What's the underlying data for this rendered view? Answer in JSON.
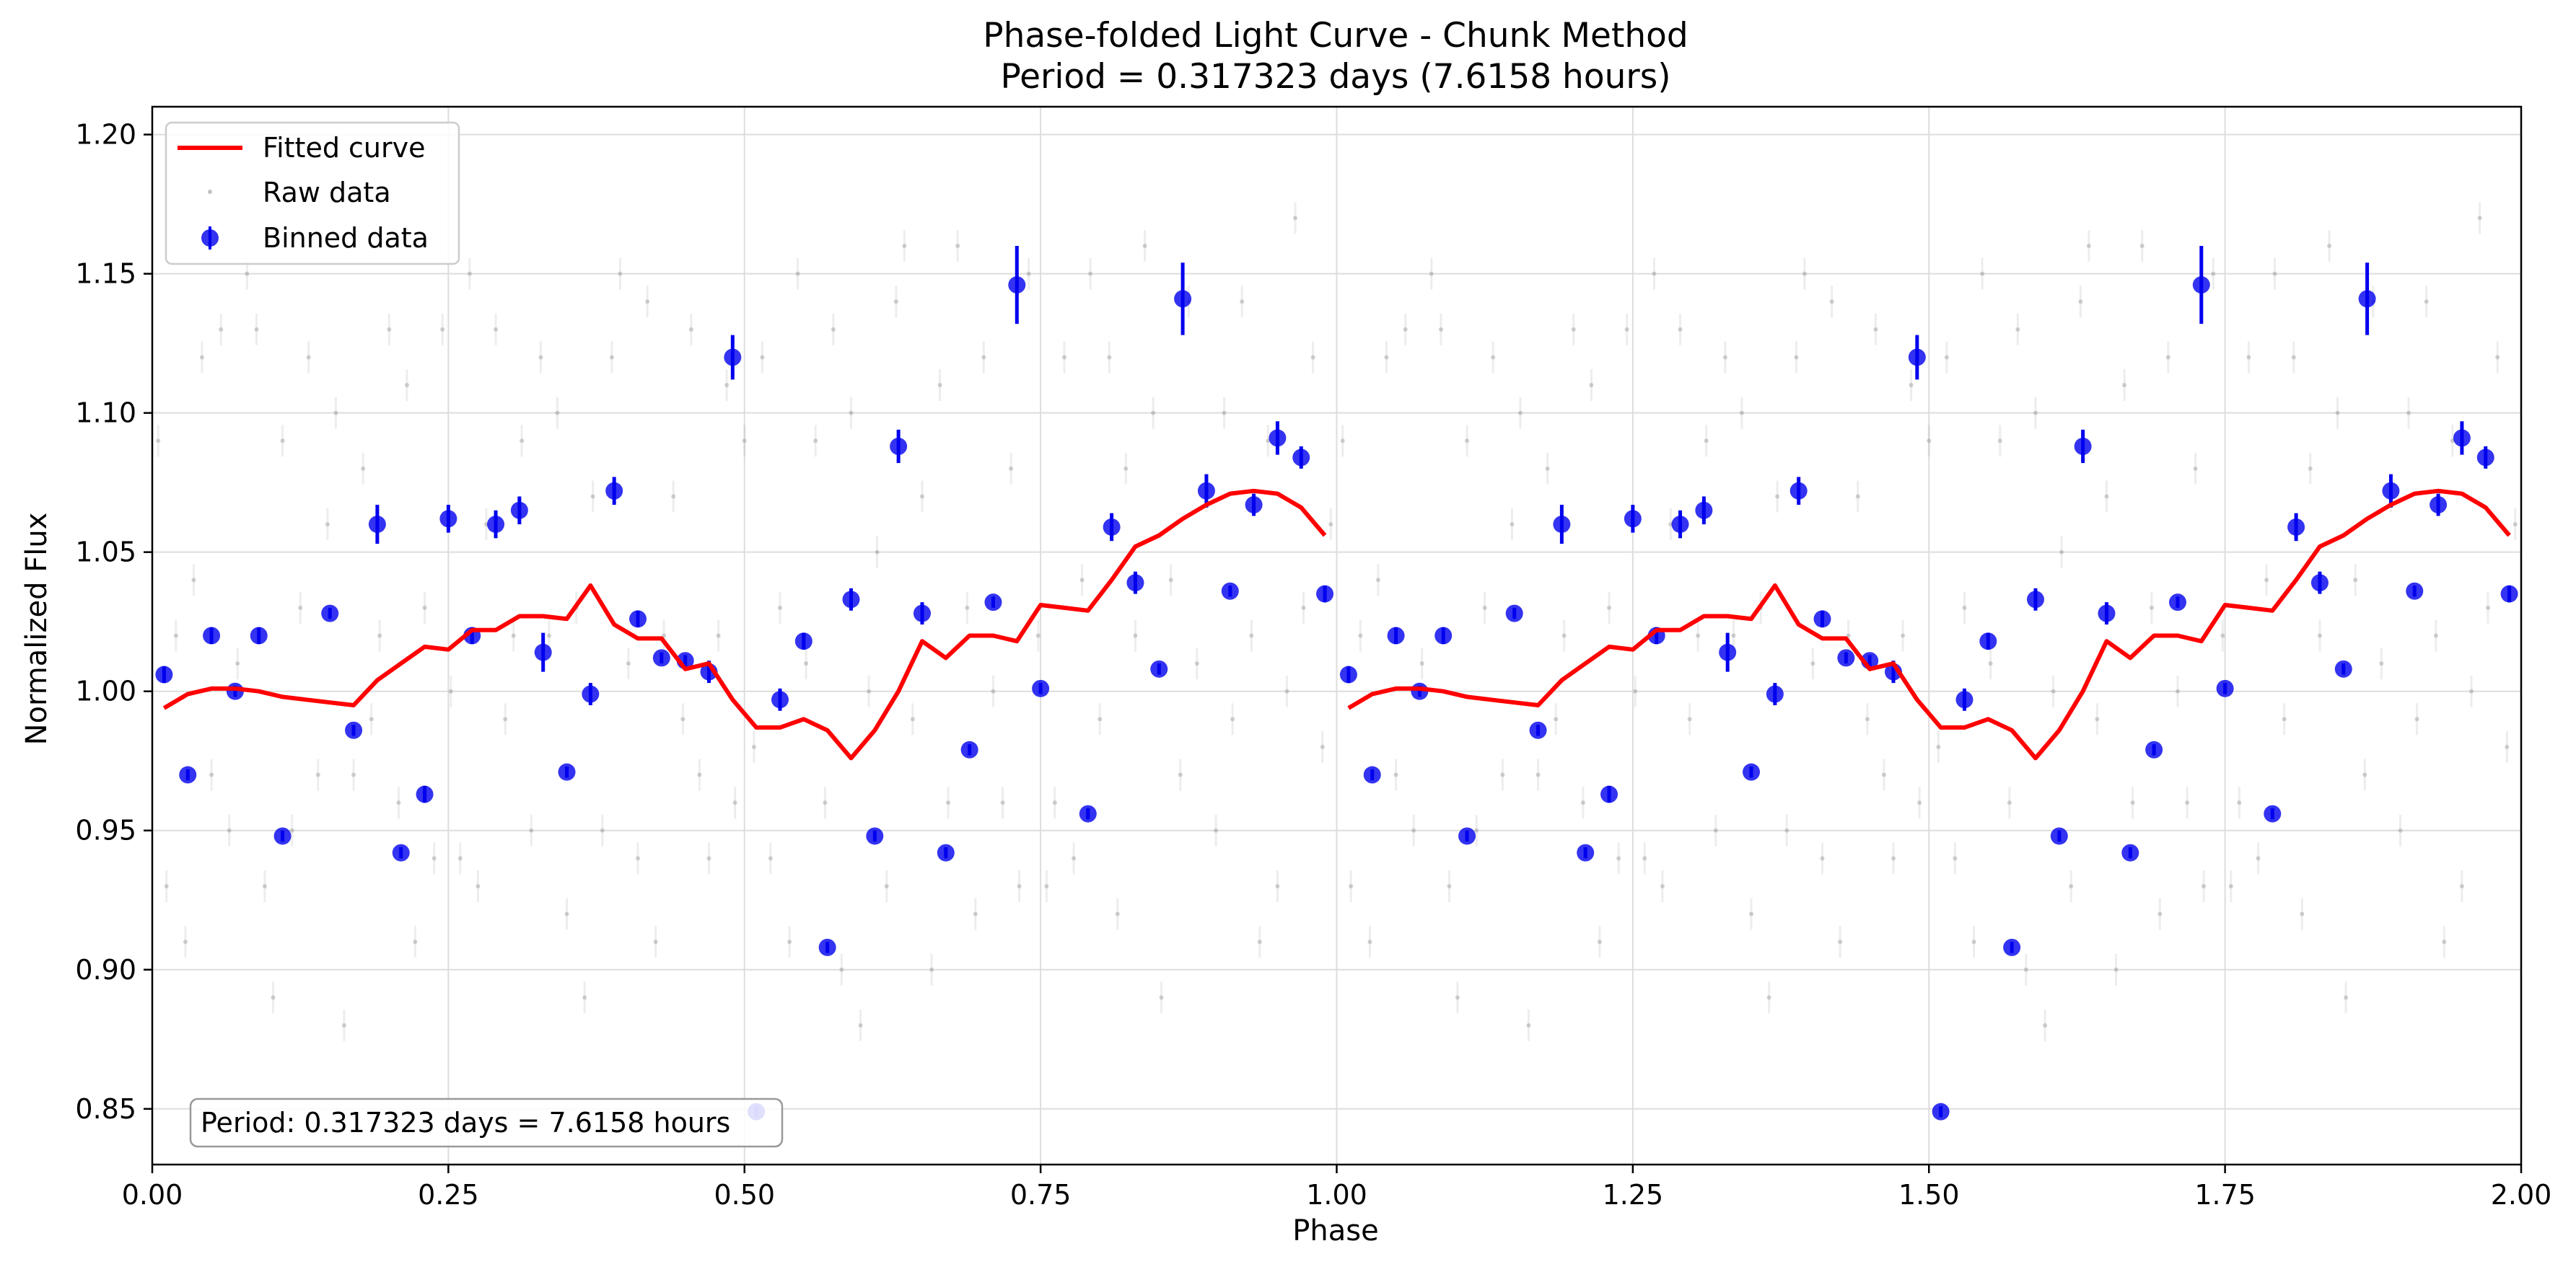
{
  "chart_data": {
    "type": "scatter",
    "title": "Phase-folded Light Curve - Chunk Method",
    "subtitle": "Period = 0.317323 days (7.6158 hours)",
    "xlabel": "Phase",
    "ylabel": "Normalized Flux",
    "xlim": [
      0.0,
      2.0
    ],
    "ylim": [
      0.83,
      1.21
    ],
    "x_ticks": [
      "0.00",
      "0.25",
      "0.50",
      "0.75",
      "1.00",
      "1.25",
      "1.50",
      "1.75",
      "2.00"
    ],
    "y_ticks": [
      "0.85",
      "0.90",
      "0.95",
      "1.00",
      "1.05",
      "1.10",
      "1.15",
      "1.20"
    ],
    "grid": true,
    "legend_position": "top-left",
    "annotation": "Period: 0.317323 days = 7.6158 hours",
    "colors": {
      "fitted": "#ff0000",
      "binned": "#0000ee",
      "raw": "#999999"
    },
    "series": [
      {
        "name": "Fitted curve",
        "style": "line",
        "x": [
          0.01,
          0.03,
          0.05,
          0.07,
          0.09,
          0.11,
          0.13,
          0.15,
          0.17,
          0.19,
          0.21,
          0.23,
          0.25,
          0.27,
          0.29,
          0.31,
          0.33,
          0.35,
          0.37,
          0.39,
          0.41,
          0.43,
          0.45,
          0.47,
          0.49,
          0.51,
          0.53,
          0.55,
          0.57,
          0.59,
          0.61,
          0.63,
          0.65,
          0.67,
          0.69,
          0.71,
          0.73,
          0.75,
          0.77,
          0.79,
          0.81,
          0.83,
          0.85,
          0.87,
          0.89,
          0.91,
          0.93,
          0.95,
          0.97,
          0.99
        ],
        "y": [
          0.994,
          0.999,
          1.001,
          1.001,
          1.0,
          0.998,
          0.997,
          0.996,
          0.995,
          1.004,
          1.01,
          1.016,
          1.015,
          1.022,
          1.022,
          1.027,
          1.027,
          1.026,
          1.038,
          1.024,
          1.019,
          1.019,
          1.008,
          1.01,
          0.997,
          0.987,
          0.987,
          0.99,
          0.986,
          0.976,
          0.986,
          1.0,
          1.018,
          1.012,
          1.02,
          1.02,
          1.018,
          1.031,
          1.03,
          1.029,
          1.04,
          1.052,
          1.056,
          1.062,
          1.067,
          1.071,
          1.072,
          1.071,
          1.066,
          1.056
        ]
      },
      {
        "name": "Raw data",
        "style": "points",
        "x": [
          0.005,
          0.012,
          0.02,
          0.028,
          0.035,
          0.042,
          0.05,
          0.058,
          0.065,
          0.072,
          0.08,
          0.088,
          0.095,
          0.102,
          0.11,
          0.118,
          0.125,
          0.132,
          0.14,
          0.148,
          0.155,
          0.162,
          0.17,
          0.178,
          0.185,
          0.192,
          0.2,
          0.208,
          0.215,
          0.222,
          0.23,
          0.238,
          0.245,
          0.252,
          0.26,
          0.268,
          0.275,
          0.282,
          0.29,
          0.298,
          0.305,
          0.312,
          0.32,
          0.328,
          0.335,
          0.342,
          0.35,
          0.358,
          0.365,
          0.372,
          0.38,
          0.388,
          0.395,
          0.402,
          0.41,
          0.418,
          0.425,
          0.432,
          0.44,
          0.448,
          0.455,
          0.462,
          0.47,
          0.478,
          0.485,
          0.492,
          0.5,
          0.508,
          0.515,
          0.522,
          0.53,
          0.538,
          0.545,
          0.552,
          0.56,
          0.568,
          0.575,
          0.582,
          0.59,
          0.598,
          0.605,
          0.612,
          0.62,
          0.628,
          0.635,
          0.642,
          0.65,
          0.658,
          0.665,
          0.672,
          0.68,
          0.688,
          0.695,
          0.702,
          0.71,
          0.718,
          0.725,
          0.732,
          0.74,
          0.748,
          0.755,
          0.762,
          0.77,
          0.778,
          0.785,
          0.792,
          0.8,
          0.808,
          0.815,
          0.822,
          0.83,
          0.838,
          0.845,
          0.852,
          0.86,
          0.868,
          0.875,
          0.882,
          0.89,
          0.898,
          0.905,
          0.912,
          0.92,
          0.928,
          0.935,
          0.942,
          0.95,
          0.958,
          0.965,
          0.972,
          0.98,
          0.988,
          0.995
        ],
        "y": [
          1.09,
          0.93,
          1.02,
          0.91,
          1.04,
          1.12,
          0.97,
          1.13,
          0.95,
          1.01,
          1.15,
          1.13,
          0.93,
          0.89,
          1.09,
          0.95,
          1.03,
          1.12,
          0.97,
          1.06,
          1.1,
          0.88,
          0.97,
          1.08,
          0.99,
          1.02,
          1.13,
          0.96,
          1.11,
          0.91,
          1.03,
          0.94,
          1.13,
          1.0,
          0.94,
          1.15,
          0.93,
          1.06,
          1.13,
          0.99,
          1.02,
          1.09,
          0.95,
          1.12,
          1.02,
          1.1,
          0.92,
          1.03,
          0.89,
          1.07,
          0.95,
          1.12,
          1.15,
          1.01,
          0.94,
          1.14,
          0.91,
          1.02,
          1.07,
          0.99,
          1.13,
          0.97,
          0.94,
          1.02,
          1.11,
          0.96,
          1.09,
          0.98,
          1.12,
          0.94,
          1.03,
          0.91,
          1.15,
          1.01,
          1.09,
          0.96,
          1.13,
          0.9,
          1.1,
          0.88,
          1.0,
          1.05,
          0.93,
          1.14,
          1.16,
          0.99,
          1.07,
          0.9,
          1.11,
          0.96,
          1.16,
          1.03,
          0.92,
          1.12,
          1.0,
          0.96,
          1.08,
          0.93,
          1.15,
          1.02,
          0.93,
          0.96,
          1.12,
          0.94,
          1.04,
          1.15,
          0.99,
          1.12,
          0.92,
          1.08,
          1.02,
          1.16,
          1.1,
          0.89,
          1.04,
          0.97,
          1.14,
          1.01,
          1.07,
          0.95,
          1.1,
          0.99,
          1.14,
          1.02,
          0.91,
          1.09,
          0.93,
          1.0,
          1.17,
          1.03,
          1.12,
          0.98,
          1.06
        ]
      },
      {
        "name": "Binned data",
        "style": "errorbar",
        "x": [
          0.01,
          0.03,
          0.05,
          0.07,
          0.09,
          0.11,
          0.15,
          0.17,
          0.19,
          0.21,
          0.23,
          0.25,
          0.27,
          0.29,
          0.31,
          0.33,
          0.35,
          0.37,
          0.39,
          0.41,
          0.43,
          0.45,
          0.47,
          0.49,
          0.51,
          0.53,
          0.55,
          0.57,
          0.59,
          0.61,
          0.63,
          0.65,
          0.67,
          0.69,
          0.71,
          0.73,
          0.75,
          0.79,
          0.81,
          0.83,
          0.85,
          0.87,
          0.89,
          0.91,
          0.93,
          0.95,
          0.97,
          0.99
        ],
        "y": [
          1.006,
          0.97,
          1.02,
          1.0,
          1.02,
          0.948,
          1.028,
          0.986,
          1.06,
          0.942,
          0.963,
          1.062,
          1.02,
          1.06,
          1.065,
          1.014,
          0.971,
          0.999,
          1.072,
          1.026,
          1.012,
          1.011,
          1.007,
          1.12,
          0.849,
          0.997,
          1.018,
          0.908,
          1.033,
          0.948,
          1.088,
          1.028,
          0.942,
          0.979,
          1.032,
          1.146,
          1.001,
          0.956,
          1.059,
          1.039,
          1.008,
          1.141,
          1.072,
          1.036,
          1.067,
          1.091,
          1.084,
          1.035
        ],
        "yerr": [
          0.003,
          0.002,
          0.003,
          0.002,
          0.003,
          0.002,
          0.002,
          0.002,
          0.007,
          0.002,
          0.003,
          0.005,
          0.003,
          0.005,
          0.005,
          0.007,
          0.002,
          0.004,
          0.005,
          0.003,
          0.002,
          0.002,
          0.004,
          0.008,
          0.002,
          0.004,
          0.003,
          0.002,
          0.004,
          0.002,
          0.006,
          0.004,
          0.002,
          0.002,
          0.002,
          0.014,
          0.002,
          0.002,
          0.005,
          0.004,
          0.002,
          0.013,
          0.006,
          0.002,
          0.004,
          0.006,
          0.004,
          0.003
        ]
      }
    ],
    "phase_repeat_offset": 1.0
  }
}
